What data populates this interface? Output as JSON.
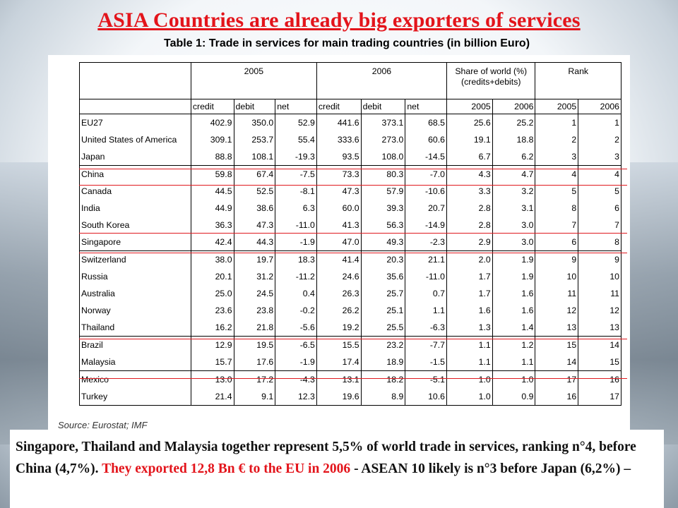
{
  "slide": {
    "title": "ASIA Countries are already big exporters of services",
    "caption": "Table 1: Trade in services for main trading countries (in billion Euro)",
    "source": "Source: Eurostat; IMF",
    "note": {
      "part1": "Singapore, Thailand and Malaysia together represent 5,5% of world trade in services, ranking n°4, before China (4,7%).",
      "part2": " They exported 12,8 Bn € to the EU in 2006",
      "part3": "  - ASEAN 10 likely is n°3 before Japan  (6,2%) –"
    }
  },
  "table": {
    "group_headers": {
      "y2005": "2005",
      "y2006": "2006",
      "share_line1": "Share of world (%)",
      "share_line2": "(credits+debits)",
      "rank": "Rank"
    },
    "sub_headers": [
      "credit",
      "debit",
      "net",
      "credit",
      "debit",
      "net",
      "2005",
      "2006",
      "2005",
      "2006"
    ],
    "rows": [
      {
        "country": "EU27",
        "v": [
          "402.9",
          "350.0",
          "52.9",
          "441.6",
          "373.1",
          "68.5",
          "25.6",
          "25.2",
          "1",
          "1"
        ]
      },
      {
        "country": "United States of America",
        "v": [
          "309.1",
          "253.7",
          "55.4",
          "333.6",
          "273.0",
          "60.6",
          "19.1",
          "18.8",
          "2",
          "2"
        ]
      },
      {
        "country": "Japan",
        "v": [
          "88.8",
          "108.1",
          "-19.3",
          "93.5",
          "108.0",
          "-14.5",
          "6.7",
          "6.2",
          "3",
          "3"
        ]
      },
      {
        "country": "China",
        "v": [
          "59.8",
          "67.4",
          "-7.5",
          "73.3",
          "80.3",
          "-7.0",
          "4.3",
          "4.7",
          "4",
          "4"
        ]
      },
      {
        "country": "Canada",
        "v": [
          "44.5",
          "52.5",
          "-8.1",
          "47.3",
          "57.9",
          "-10.6",
          "3.3",
          "3.2",
          "5",
          "5"
        ]
      },
      {
        "country": "India",
        "v": [
          "44.9",
          "38.6",
          "6.3",
          "60.0",
          "39.3",
          "20.7",
          "2.8",
          "3.1",
          "8",
          "6"
        ]
      },
      {
        "country": "South Korea",
        "v": [
          "36.3",
          "47.3",
          "-11.0",
          "41.3",
          "56.3",
          "-14.9",
          "2.8",
          "3.0",
          "7",
          "7"
        ]
      },
      {
        "country": "Singapore",
        "v": [
          "42.4",
          "44.3",
          "-1.9",
          "47.0",
          "49.3",
          "-2.3",
          "2.9",
          "3.0",
          "6",
          "8"
        ]
      },
      {
        "country": "Switzerland",
        "v": [
          "38.0",
          "19.7",
          "18.3",
          "41.4",
          "20.3",
          "21.1",
          "2.0",
          "1.9",
          "9",
          "9"
        ]
      },
      {
        "country": "Russia",
        "v": [
          "20.1",
          "31.2",
          "-11.2",
          "24.6",
          "35.6",
          "-11.0",
          "1.7",
          "1.9",
          "10",
          "10"
        ]
      },
      {
        "country": "Australia",
        "v": [
          "25.0",
          "24.5",
          "0.4",
          "26.3",
          "25.7",
          "0.7",
          "1.7",
          "1.6",
          "11",
          "11"
        ]
      },
      {
        "country": "Norway",
        "v": [
          "23.6",
          "23.8",
          "-0.2",
          "26.2",
          "25.1",
          "1.1",
          "1.6",
          "1.6",
          "12",
          "12"
        ]
      },
      {
        "country": "Thailand",
        "v": [
          "16.2",
          "21.8",
          "-5.6",
          "19.2",
          "25.5",
          "-6.3",
          "1.3",
          "1.4",
          "13",
          "13"
        ]
      },
      {
        "country": "Brazil",
        "v": [
          "12.9",
          "19.5",
          "-6.5",
          "15.5",
          "23.2",
          "-7.7",
          "1.1",
          "1.2",
          "15",
          "14"
        ]
      },
      {
        "country": "Malaysia",
        "v": [
          "15.7",
          "17.6",
          "-1.9",
          "17.4",
          "18.9",
          "-1.5",
          "1.1",
          "1.1",
          "14",
          "15"
        ]
      },
      {
        "country": "Mexico",
        "v": [
          "13.0",
          "17.2",
          "-4.3",
          "13.1",
          "18.2",
          "-5.1",
          "1.0",
          "1.0",
          "17",
          "16"
        ]
      },
      {
        "country": "Turkey",
        "v": [
          "21.4",
          "9.1",
          "12.3",
          "19.6",
          "8.9",
          "10.6",
          "1.0",
          "0.9",
          "16",
          "17"
        ]
      }
    ]
  },
  "colors": {
    "title": "#e3141b",
    "highlight_line": "#e0191f"
  }
}
